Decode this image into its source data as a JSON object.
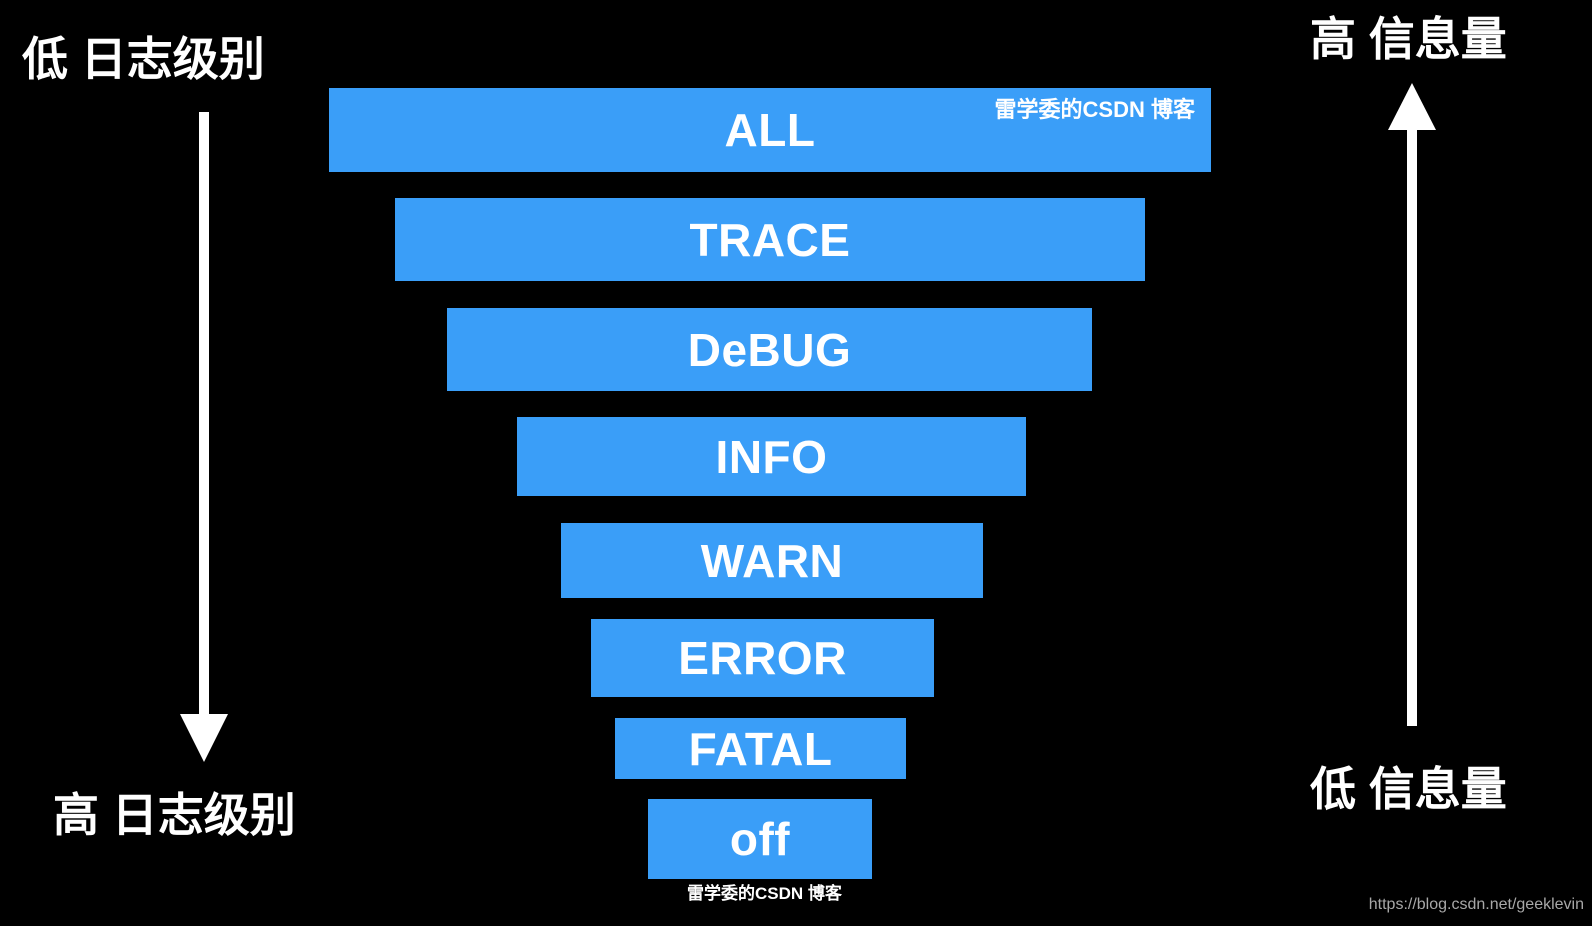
{
  "left": {
    "top_label": "低 日志级别",
    "bottom_label": "高 日志级别",
    "arrow_icon": "arrow-down-icon"
  },
  "right": {
    "top_label": "高 信息量",
    "bottom_label": "低 信息量",
    "arrow_icon": "arrow-up-icon"
  },
  "levels": [
    "ALL",
    "TRACE",
    "DeBUG",
    "INFO",
    "WARN",
    "ERROR",
    "FATAL",
    "off"
  ],
  "watermarks": {
    "inner": "雷学委的CSDN 博客",
    "bottom": "雷学委的CSDN 博客",
    "url": "https://blog.csdn.net/geeklevin"
  },
  "colors": {
    "background": "#000000",
    "bar": "#3a9ef8",
    "text": "#ffffff",
    "url": "#a8a8a8"
  }
}
